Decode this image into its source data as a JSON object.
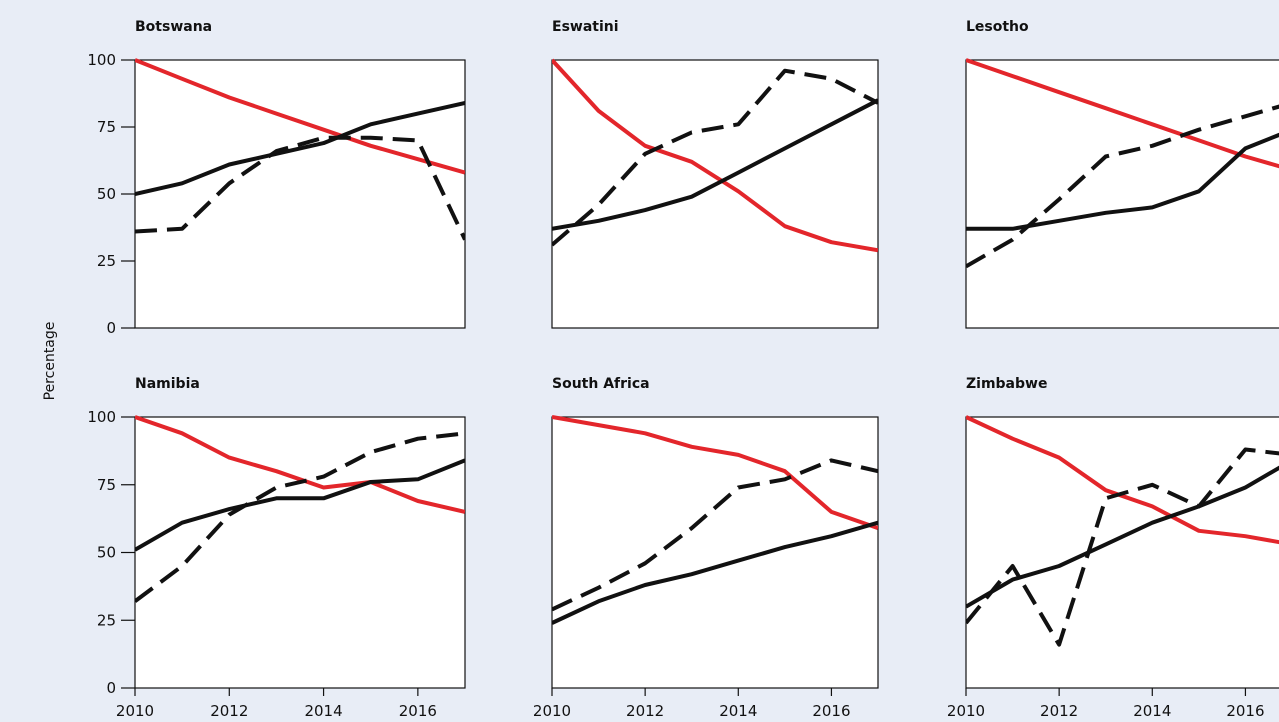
{
  "chart_data": {
    "type": "line",
    "ylabel": "Percentage",
    "ylim": [
      0,
      100
    ],
    "yticks": [
      0,
      25,
      50,
      75,
      100
    ],
    "xlim": [
      2010,
      2017
    ],
    "xticks": [
      2010,
      2012,
      2014,
      2016
    ],
    "x": [
      2010,
      2011,
      2012,
      2013,
      2014,
      2015,
      2016,
      2017
    ],
    "series_styles": [
      {
        "color": "#e3262b",
        "dash": "solid"
      },
      {
        "color": "#111111",
        "dash": "solid"
      },
      {
        "color": "#111111",
        "dash": "dashed"
      }
    ],
    "panels": [
      {
        "title": "Botswana",
        "series": [
          {
            "values": [
              100,
              93,
              86,
              80,
              74,
              68,
              63,
              58
            ]
          },
          {
            "values": [
              50,
              54,
              61,
              65,
              69,
              76,
              80,
              84
            ]
          },
          {
            "values": [
              36,
              37,
              54,
              66,
              71,
              71,
              70,
              33
            ]
          }
        ]
      },
      {
        "title": "Eswatini",
        "series": [
          {
            "values": [
              100,
              81,
              68,
              62,
              51,
              38,
              32,
              29
            ]
          },
          {
            "values": [
              37,
              40,
              44,
              49,
              58,
              67,
              76,
              85
            ]
          },
          {
            "values": [
              31,
              46,
              65,
              73,
              76,
              96,
              93,
              84
            ]
          }
        ]
      },
      {
        "title": "Lesotho",
        "series": [
          {
            "values": [
              100,
              94,
              88,
              82,
              76,
              70,
              64,
              59
            ]
          },
          {
            "values": [
              37,
              37,
              40,
              43,
              45,
              51,
              67,
              74
            ]
          },
          {
            "values": [
              23,
              33,
              48,
              64,
              68,
              74,
              79,
              84
            ]
          }
        ]
      },
      {
        "title": "Namibia",
        "series": [
          {
            "values": [
              100,
              94,
              85,
              80,
              74,
              76,
              69,
              65
            ]
          },
          {
            "values": [
              51,
              61,
              66,
              70,
              70,
              76,
              77,
              84
            ]
          },
          {
            "values": [
              32,
              45,
              64,
              74,
              78,
              87,
              92,
              94
            ]
          }
        ]
      },
      {
        "title": "South Africa",
        "series": [
          {
            "values": [
              100,
              97,
              94,
              89,
              86,
              80,
              65,
              59
            ]
          },
          {
            "values": [
              24,
              32,
              38,
              42,
              47,
              52,
              56,
              61
            ]
          },
          {
            "values": [
              29,
              37,
              46,
              59,
              74,
              77,
              84,
              80
            ]
          }
        ]
      },
      {
        "title": "Zimbabwe",
        "series": [
          {
            "values": [
              100,
              92,
              85,
              73,
              67,
              58,
              56,
              53
            ]
          },
          {
            "values": [
              30,
              40,
              45,
              53,
              61,
              67,
              74,
              84
            ]
          },
          {
            "values": [
              24,
              45,
              16,
              70,
              75,
              67,
              88,
              86
            ]
          }
        ]
      }
    ]
  }
}
